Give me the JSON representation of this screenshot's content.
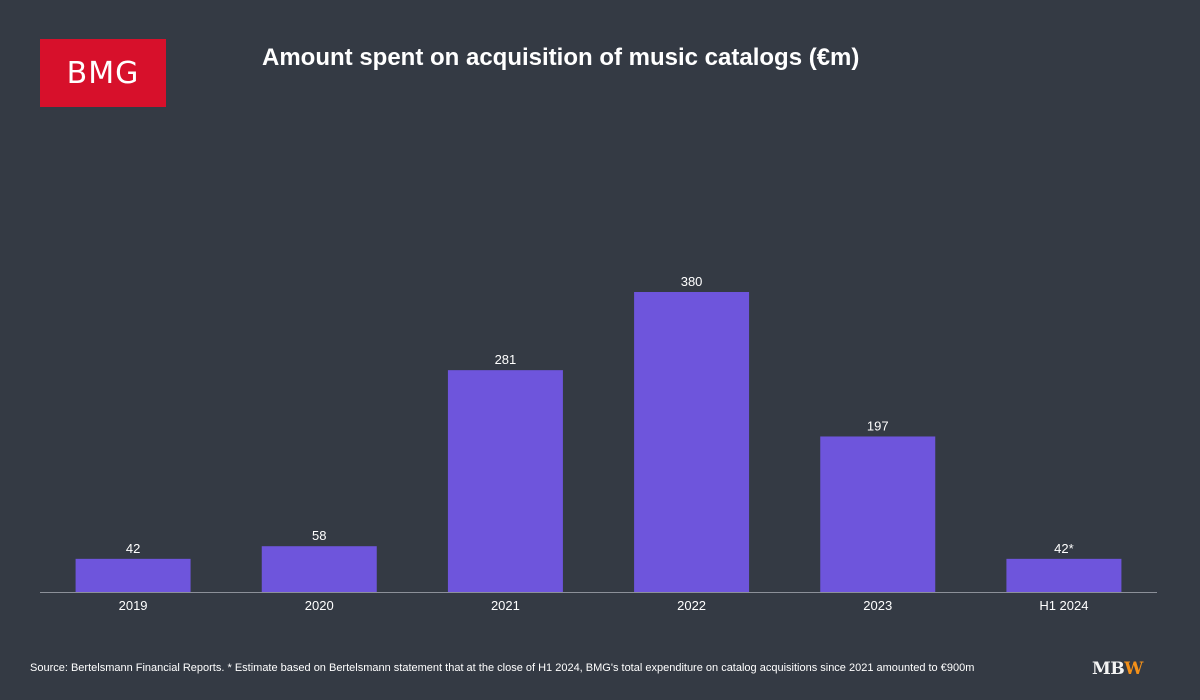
{
  "logo": {
    "text": "BMG",
    "background": "#d7102b"
  },
  "title": "Amount spent on acquisition of music catalogs (€m)",
  "chart_data": {
    "type": "bar",
    "title": "Amount spent on acquisition of music catalogs (€m)",
    "categories": [
      "2019",
      "2020",
      "2021",
      "2022",
      "2023",
      "H1 2024"
    ],
    "values": [
      42,
      58,
      281,
      380,
      197,
      42
    ],
    "data_labels": [
      "42",
      "58",
      "281",
      "380",
      "197",
      "42*"
    ],
    "xlabel": "",
    "ylabel": "",
    "ylim": [
      0,
      380
    ],
    "grid": false,
    "bar_color": "#6e55dc",
    "axis_color": "#8c9099"
  },
  "source": "Source: Bertelsmann Financial Reports. * Estimate based on Bertelsmann statement that at the close of H1 2024, BMG's total expenditure on catalog acquisitions since 2021 amounted to €900m",
  "watermark": {
    "part1": "MB",
    "part2": "W",
    "accent": "#f39019"
  }
}
